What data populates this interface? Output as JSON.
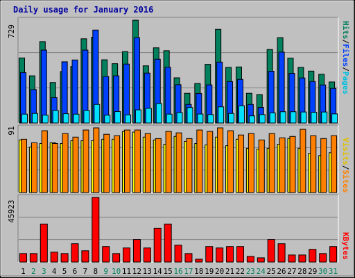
{
  "title": "Daily usage for January 2016",
  "legend": {
    "hits": "Hits",
    "files": "Files",
    "pages": "Pages",
    "visits": "Visits",
    "sites": "Sites",
    "kbytes": "KBytes",
    "sep": "/"
  },
  "colors": {
    "background": "#c0c0c0",
    "hits": "#00805c",
    "files": "#0040ff",
    "pages": "#00e0ff",
    "visits": "#ffff00",
    "sites": "#ff8000",
    "kbytes": "#ff0000",
    "weekday_label": "#000000",
    "weekend_label": "#00805c",
    "title": "#0000a0",
    "gridline": "#808080"
  },
  "chart_data": [
    {
      "type": "bar",
      "panel": "hits-files-pages",
      "ymax_label": "729",
      "ylim": [
        0,
        729
      ],
      "categories": [
        "1",
        "2",
        "3",
        "4",
        "5",
        "6",
        "7",
        "8",
        "9",
        "10",
        "11",
        "12",
        "13",
        "14",
        "15",
        "16",
        "17",
        "18",
        "19",
        "20",
        "21",
        "22",
        "23",
        "24",
        "25",
        "26",
        "27",
        "28",
        "29",
        "30",
        "31"
      ],
      "weekend": [
        false,
        true,
        true,
        false,
        false,
        false,
        false,
        false,
        true,
        true,
        false,
        false,
        false,
        false,
        false,
        true,
        true,
        false,
        false,
        false,
        false,
        false,
        true,
        true,
        false,
        false,
        false,
        false,
        false,
        true,
        true
      ],
      "series": [
        {
          "name": "Hits",
          "values": [
            455,
            330,
            569,
            283,
            360,
            395,
            589,
            600,
            442,
            415,
            499,
            719,
            400,
            526,
            506,
            316,
            208,
            276,
            410,
            655,
            389,
            392,
            208,
            199,
            514,
            597,
            454,
            389,
            363,
            341,
            287
          ]
        },
        {
          "name": "Files",
          "values": [
            353,
            234,
            510,
            178,
            428,
            441,
            510,
            650,
            325,
            330,
            412,
            597,
            349,
            446,
            390,
            268,
            130,
            207,
            267,
            426,
            290,
            305,
            130,
            109,
            362,
            496,
            347,
            315,
            290,
            266,
            242
          ]
        },
        {
          "name": "Pages",
          "values": [
            62,
            67,
            55,
            88,
            65,
            62,
            88,
            130,
            55,
            80,
            57,
            92,
            103,
            136,
            62,
            73,
            108,
            63,
            59,
            113,
            67,
            121,
            50,
            59,
            71,
            79,
            79,
            77,
            75,
            77,
            64
          ]
        }
      ]
    },
    {
      "type": "bar",
      "panel": "visits-sites",
      "ymax_label": "91",
      "ylim": [
        0,
        91
      ],
      "categories": [
        "1",
        "2",
        "3",
        "4",
        "5",
        "6",
        "7",
        "8",
        "9",
        "10",
        "11",
        "12",
        "13",
        "14",
        "15",
        "16",
        "17",
        "18",
        "19",
        "20",
        "21",
        "22",
        "23",
        "24",
        "25",
        "26",
        "27",
        "28",
        "29",
        "30",
        "31"
      ],
      "series": [
        {
          "name": "Visits",
          "values": [
            74,
            64,
            69,
            70,
            69,
            73,
            73,
            73,
            75,
            75,
            86,
            85,
            78,
            74,
            68,
            79,
            72,
            69,
            67,
            78,
            66,
            75,
            62,
            61,
            62,
            68,
            76,
            62,
            55,
            52,
            56
          ]
        },
        {
          "name": "Sites",
          "values": [
            75,
            70,
            87,
            69,
            83,
            78,
            88,
            91,
            82,
            80,
            88,
            88,
            83,
            76,
            86,
            84,
            76,
            88,
            86,
            91,
            87,
            81,
            83,
            74,
            83,
            77,
            79,
            89,
            80,
            76,
            80
          ]
        }
      ]
    },
    {
      "type": "bar",
      "panel": "kbytes",
      "ymax_label": "45923",
      "ylim": [
        0,
        45923
      ],
      "categories": [
        "1",
        "2",
        "3",
        "4",
        "5",
        "6",
        "7",
        "8",
        "9",
        "10",
        "11",
        "12",
        "13",
        "14",
        "15",
        "16",
        "17",
        "18",
        "19",
        "20",
        "21",
        "22",
        "23",
        "24",
        "25",
        "26",
        "27",
        "28",
        "29",
        "30",
        "31"
      ],
      "series": [
        {
          "name": "KBytes",
          "values": [
            6000,
            6000,
            27000,
            7000,
            6000,
            13000,
            8000,
            45923,
            11000,
            6000,
            10000,
            16000,
            10000,
            24000,
            27000,
            12000,
            6000,
            2000,
            11000,
            10000,
            11000,
            11000,
            4000,
            3000,
            16000,
            13000,
            5000,
            5000,
            9000,
            6000,
            11000
          ]
        }
      ]
    }
  ]
}
